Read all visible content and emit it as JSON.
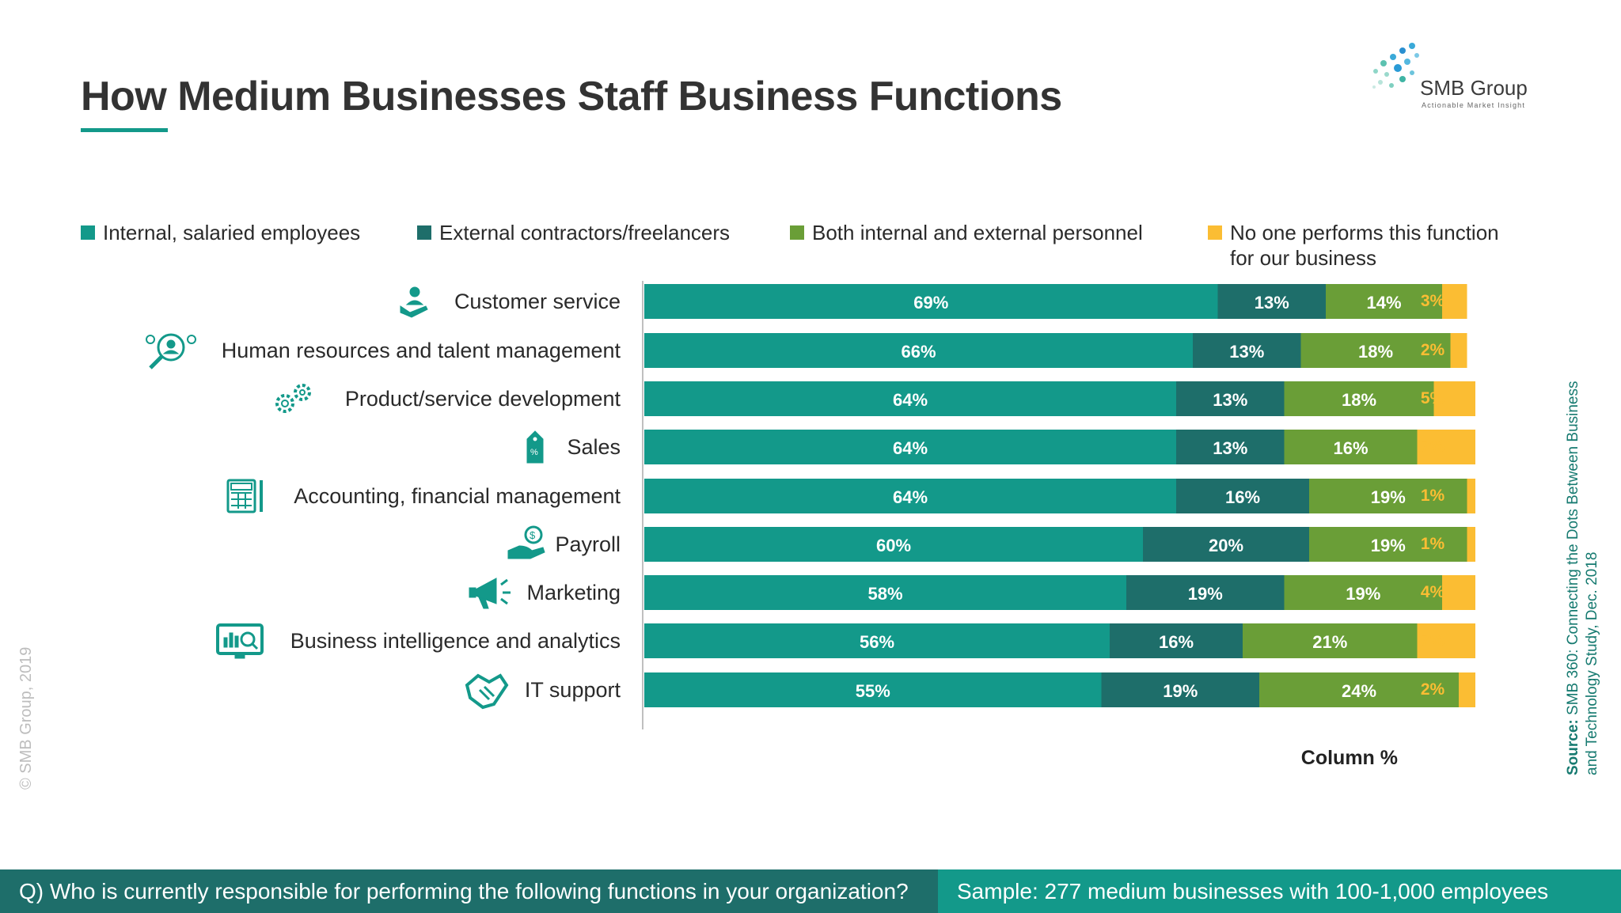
{
  "title": "How Medium Businesses Staff Business Functions",
  "logo": {
    "name": "SMB Group",
    "tagline": "Actionable Market Insight"
  },
  "colors": {
    "internal": "#13998a",
    "external": "#1e6e6a",
    "both": "#6a9e37",
    "none": "#fbbd33",
    "accent": "#13998a"
  },
  "chart_data": {
    "type": "bar",
    "orientation": "horizontal",
    "stacked": true,
    "categories": [
      "Customer service",
      "Human resources and talent management",
      "Product/service development",
      "Sales",
      "Accounting, financial management",
      "Payroll",
      "Marketing",
      "Business intelligence and analytics",
      "IT support"
    ],
    "icons": [
      "customer-service-icon",
      "hr-search-icon",
      "gears-icon",
      "price-tag-icon",
      "calculator-icon",
      "payroll-icon",
      "megaphone-icon",
      "analytics-monitor-icon",
      "handshake-icon"
    ],
    "series": [
      {
        "name": "Internal, salaried employees",
        "color": "#13998a",
        "values": [
          69,
          66,
          64,
          64,
          64,
          60,
          58,
          56,
          55
        ]
      },
      {
        "name": "External contractors/freelancers",
        "color": "#1e6e6a",
        "values": [
          13,
          13,
          13,
          13,
          16,
          20,
          19,
          16,
          19
        ]
      },
      {
        "name": "Both internal and external personnel",
        "color": "#6a9e37",
        "values": [
          14,
          18,
          18,
          16,
          19,
          19,
          19,
          21,
          24
        ]
      },
      {
        "name": "No one performs this function for our business",
        "color": "#fbbd33",
        "values": [
          3,
          2,
          5,
          7,
          1,
          1,
          4,
          7,
          2
        ]
      }
    ],
    "value_suffix": "%",
    "xlabel": "Column %",
    "legend_position": "top"
  },
  "legend": [
    {
      "label": "Internal, salaried employees",
      "color": "#13998a"
    },
    {
      "label": "External contractors/freelancers",
      "color": "#1e6e6a"
    },
    {
      "label": "Both internal and external personnel",
      "color": "#6a9e37"
    },
    {
      "label_line1": "No one performs this function",
      "label_line2": "for our business",
      "color": "#fbbd33"
    }
  ],
  "copyright": "© SMB Group, 2019",
  "source": {
    "label": "Source:",
    "text": "SMB 360: Connecting the Dots Between Business and Technology  Study, Dec. 2018"
  },
  "footer": {
    "question": "Q) Who is currently responsible for performing the following functions in your organization?",
    "sample": "Sample: 277 medium businesses with 100-1,000 employees"
  }
}
